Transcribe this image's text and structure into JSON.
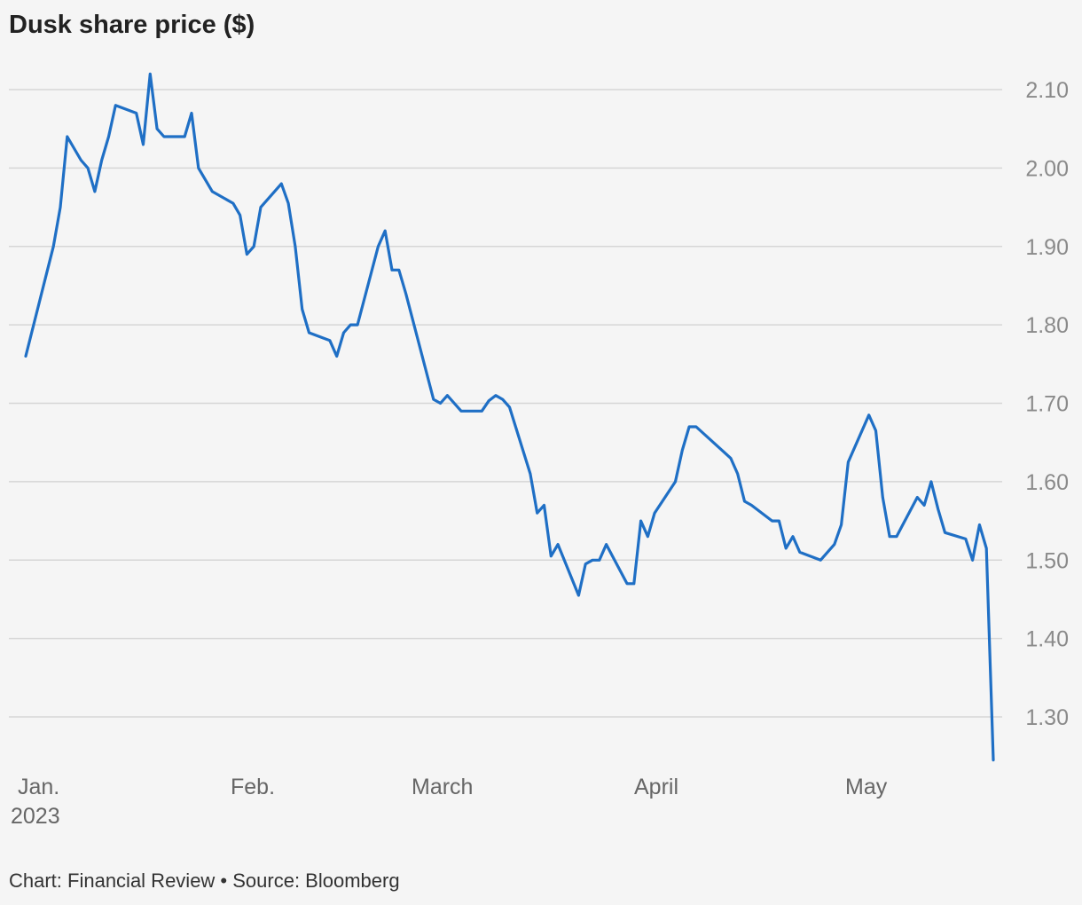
{
  "title": "Dusk share price ($)",
  "footer": "Chart: Financial Review • Source: Bloomberg",
  "colors": {
    "line": "#1f6fc5",
    "grid": "#d6d6d6",
    "background": "#f5f5f5"
  },
  "chart_data": {
    "type": "line",
    "title": "Dusk share price ($)",
    "ylim": [
      1.25,
      2.15
    ],
    "y_ticks": [
      {
        "value": 2.1,
        "label": "2.10"
      },
      {
        "value": 2.0,
        "label": "2.00"
      },
      {
        "value": 1.9,
        "label": "1.90"
      },
      {
        "value": 1.8,
        "label": "1.80"
      },
      {
        "value": 1.7,
        "label": "1.70"
      },
      {
        "value": 1.6,
        "label": "1.60"
      },
      {
        "value": 1.5,
        "label": "1.50"
      },
      {
        "value": 1.4,
        "label": "1.40"
      },
      {
        "value": 1.3,
        "label": "1.30"
      }
    ],
    "x_ticks": [
      {
        "date": "2023-01-01",
        "label": "Jan.",
        "sublabel": "2023"
      },
      {
        "date": "2023-02-01",
        "label": "Feb."
      },
      {
        "date": "2023-03-01",
        "label": "March"
      },
      {
        "date": "2023-04-01",
        "label": "April"
      },
      {
        "date": "2023-05-01",
        "label": "May"
      }
    ],
    "grid": true,
    "series": [
      {
        "points": [
          [
            "2023-01-03",
            1.76
          ],
          [
            "2023-01-05",
            1.83
          ],
          [
            "2023-01-06",
            1.865
          ],
          [
            "2023-01-07",
            1.9
          ],
          [
            "2023-01-08",
            1.95
          ],
          [
            "2023-01-09",
            2.04
          ],
          [
            "2023-01-11",
            2.01
          ],
          [
            "2023-01-12",
            2.0
          ],
          [
            "2023-01-13",
            1.97
          ],
          [
            "2023-01-14",
            2.01
          ],
          [
            "2023-01-15",
            2.04
          ],
          [
            "2023-01-16",
            2.08
          ],
          [
            "2023-01-19",
            2.07
          ],
          [
            "2023-01-20",
            2.03
          ],
          [
            "2023-01-21",
            2.12
          ],
          [
            "2023-01-22",
            2.05
          ],
          [
            "2023-01-23",
            2.04
          ],
          [
            "2023-01-26",
            2.04
          ],
          [
            "2023-01-27",
            2.07
          ],
          [
            "2023-01-28",
            2.0
          ],
          [
            "2023-01-30",
            1.97
          ],
          [
            "2023-02-02",
            1.955
          ],
          [
            "2023-02-03",
            1.94
          ],
          [
            "2023-02-04",
            1.89
          ],
          [
            "2023-02-05",
            1.9
          ],
          [
            "2023-02-06",
            1.95
          ],
          [
            "2023-02-09",
            1.98
          ],
          [
            "2023-02-10",
            1.955
          ],
          [
            "2023-02-11",
            1.9
          ],
          [
            "2023-02-12",
            1.82
          ],
          [
            "2023-02-13",
            1.79
          ],
          [
            "2023-02-16",
            1.78
          ],
          [
            "2023-02-17",
            1.76
          ],
          [
            "2023-02-18",
            1.79
          ],
          [
            "2023-02-19",
            1.8
          ],
          [
            "2023-02-20",
            1.8
          ],
          [
            "2023-02-23",
            1.9
          ],
          [
            "2023-02-24",
            1.92
          ],
          [
            "2023-02-25",
            1.87
          ],
          [
            "2023-02-26",
            1.87
          ],
          [
            "2023-02-27",
            1.84
          ],
          [
            "2023-03-03",
            1.705
          ],
          [
            "2023-03-04",
            1.7
          ],
          [
            "2023-03-05",
            1.71
          ],
          [
            "2023-03-07",
            1.69
          ],
          [
            "2023-03-10",
            1.69
          ],
          [
            "2023-03-11",
            1.703
          ],
          [
            "2023-03-12",
            1.71
          ],
          [
            "2023-03-13",
            1.705
          ],
          [
            "2023-03-14",
            1.695
          ],
          [
            "2023-03-17",
            1.61
          ],
          [
            "2023-03-18",
            1.56
          ],
          [
            "2023-03-19",
            1.57
          ],
          [
            "2023-03-20",
            1.505
          ],
          [
            "2023-03-21",
            1.52
          ],
          [
            "2023-03-24",
            1.455
          ],
          [
            "2023-03-25",
            1.495
          ],
          [
            "2023-03-26",
            1.5
          ],
          [
            "2023-03-27",
            1.5
          ],
          [
            "2023-03-28",
            1.52
          ],
          [
            "2023-03-31",
            1.47
          ],
          [
            "2023-04-01",
            1.47
          ],
          [
            "2023-04-02",
            1.55
          ],
          [
            "2023-04-03",
            1.53
          ],
          [
            "2023-04-04",
            1.56
          ],
          [
            "2023-04-07",
            1.6
          ],
          [
            "2023-04-08",
            1.64
          ],
          [
            "2023-04-09",
            1.67
          ],
          [
            "2023-04-10",
            1.67
          ],
          [
            "2023-04-15",
            1.63
          ],
          [
            "2023-04-16",
            1.61
          ],
          [
            "2023-04-17",
            1.575
          ],
          [
            "2023-04-18",
            1.57
          ],
          [
            "2023-04-21",
            1.55
          ],
          [
            "2023-04-22",
            1.55
          ],
          [
            "2023-04-23",
            1.515
          ],
          [
            "2023-04-24",
            1.53
          ],
          [
            "2023-04-25",
            1.51
          ],
          [
            "2023-04-28",
            1.5
          ],
          [
            "2023-04-30",
            1.52
          ],
          [
            "2023-05-01",
            1.545
          ],
          [
            "2023-05-02",
            1.625
          ],
          [
            "2023-05-05",
            1.685
          ],
          [
            "2023-05-06",
            1.665
          ],
          [
            "2023-05-07",
            1.58
          ],
          [
            "2023-05-08",
            1.53
          ],
          [
            "2023-05-09",
            1.53
          ],
          [
            "2023-05-12",
            1.58
          ],
          [
            "2023-05-13",
            1.57
          ],
          [
            "2023-05-14",
            1.6
          ],
          [
            "2023-05-15",
            1.565
          ],
          [
            "2023-05-16",
            1.535
          ],
          [
            "2023-05-19",
            1.527
          ],
          [
            "2023-05-20",
            1.5
          ],
          [
            "2023-05-21",
            1.545
          ],
          [
            "2023-05-22",
            1.515
          ],
          [
            "2023-05-23",
            1.245
          ]
        ]
      }
    ]
  }
}
